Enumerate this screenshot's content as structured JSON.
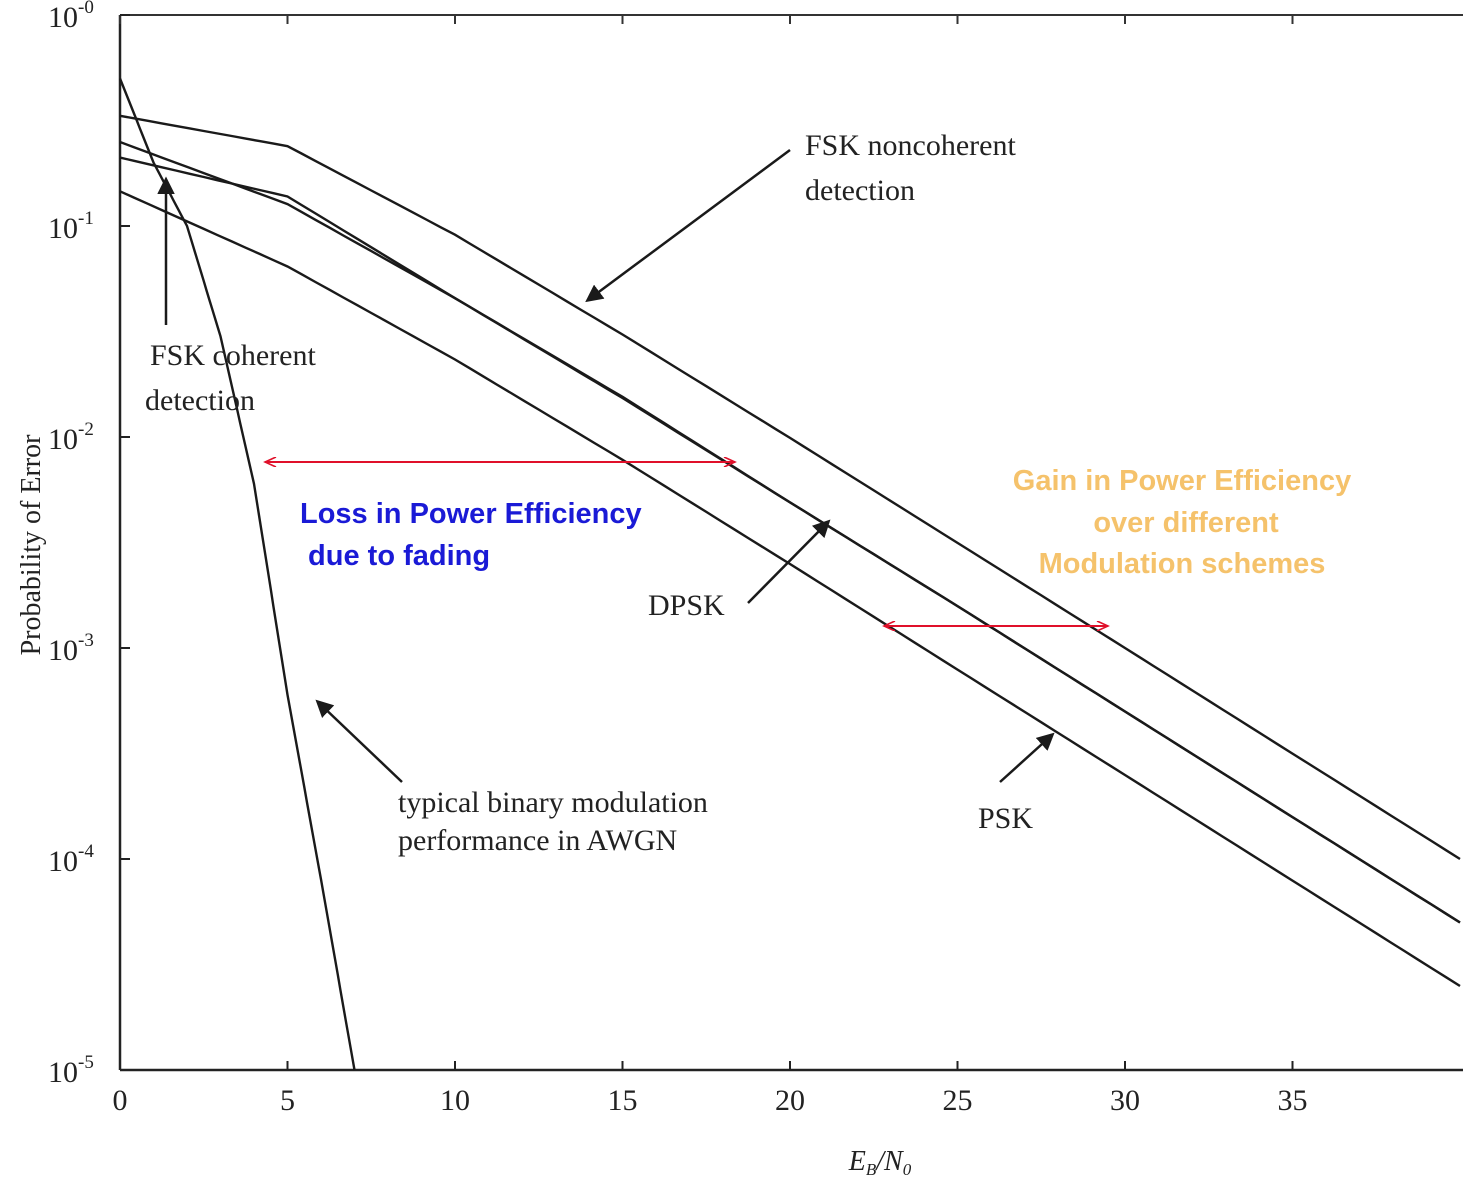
{
  "chart_data": {
    "type": "line",
    "xlabel": "E_b/N_0",
    "ylabel": "Probability of Error",
    "xlim": [
      0,
      40
    ],
    "ylim": [
      1e-05,
      1
    ],
    "yscale": "log",
    "grid": false,
    "x_ticks": [
      0,
      5,
      10,
      15,
      20,
      25,
      30,
      35
    ],
    "x_tick_labels": [
      "0",
      "5",
      "10",
      "15",
      "20",
      "25",
      "30",
      "35"
    ],
    "y_ticks": [
      1,
      0.1,
      0.01,
      0.001,
      0.0001,
      1e-05
    ],
    "y_tick_labels": [
      {
        "base": "10",
        "exp": "-0"
      },
      {
        "base": "10",
        "exp": "-1"
      },
      {
        "base": "10",
        "exp": "-2"
      },
      {
        "base": "10",
        "exp": "-3"
      },
      {
        "base": "10",
        "exp": "-4"
      },
      {
        "base": "10",
        "exp": "-5"
      }
    ],
    "series": [
      {
        "name": "FSK noncoherent detection",
        "x": [
          0,
          5,
          10,
          15,
          20,
          25,
          30,
          35,
          40
        ],
        "y": [
          0.333,
          0.239,
          0.0909,
          0.0306,
          0.0099,
          0.00315,
          0.001,
          0.000316,
          0.0001
        ]
      },
      {
        "name": "FSK coherent detection",
        "x": [
          0,
          5,
          10,
          15,
          20,
          25,
          30,
          35,
          40
        ],
        "y": [
          0.211,
          0.138,
          0.0455,
          0.0155,
          0.0049,
          0.00158,
          0.0005,
          0.000158,
          5e-05
        ]
      },
      {
        "name": "DPSK",
        "x": [
          0,
          5,
          10,
          15,
          20,
          25,
          30,
          35,
          40
        ],
        "y": [
          0.25,
          0.127,
          0.0455,
          0.0153,
          0.0049,
          0.00158,
          0.0005,
          0.000158,
          5e-05
        ]
      },
      {
        "name": "PSK",
        "x": [
          0,
          5,
          10,
          15,
          20,
          25,
          30,
          35,
          40
        ],
        "y": [
          0.146,
          0.0643,
          0.0233,
          0.0078,
          0.0025,
          0.00079,
          0.00025,
          7.9e-05,
          2.5e-05
        ]
      },
      {
        "name": "typical binary modulation performance in AWGN",
        "x": [
          0,
          1,
          2,
          3,
          4,
          5,
          6,
          7
        ],
        "y": [
          0.5,
          0.2,
          0.1,
          0.03,
          0.006,
          0.0006,
          8e-05,
          1e-05
        ]
      }
    ],
    "annotations": {
      "fsk_noncoherent": [
        "FSK noncoherent",
        "detection"
      ],
      "fsk_coherent": [
        "FSK coherent",
        "detection"
      ],
      "dpsk": "DPSK",
      "psk": "PSK",
      "awgn": [
        "typical binary modulation",
        "performance in AWGN"
      ],
      "loss": [
        "Loss  in Power Efficiency",
        " due to fading"
      ],
      "gain": [
        "Gain  in Power Efficiency",
        "over different",
        "Modulation schemes"
      ]
    },
    "colors": {
      "curve": "#1a1a1a",
      "loss_text": "#1a1ad6",
      "gain_text": "#f5c26b",
      "double_arrow": "#e0102a"
    }
  }
}
